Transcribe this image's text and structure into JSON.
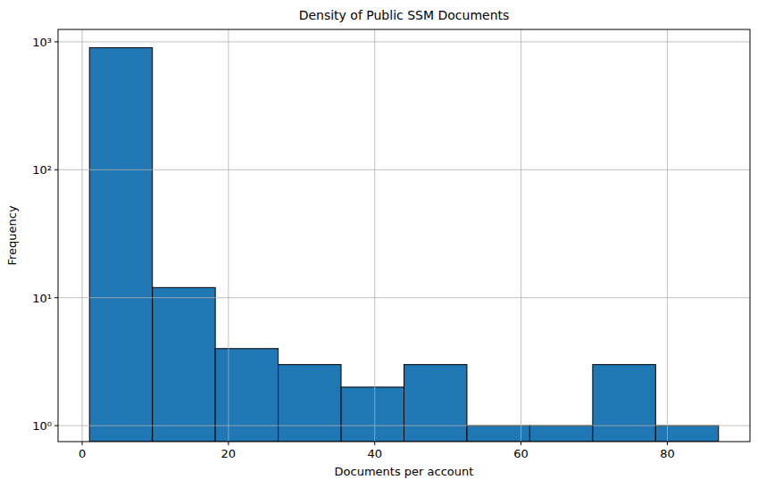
{
  "chart_data": {
    "type": "histogram",
    "title": "Density of Public SSM Documents",
    "x_label": "Documents per account",
    "y_label": "Frequency",
    "bins": [
      1,
      9.6,
      18.2,
      26.8,
      35.4,
      44,
      52.6,
      61.2,
      69.8,
      78.4,
      87
    ],
    "values": [
      900,
      12,
      4,
      3,
      2,
      3,
      1,
      1,
      3,
      1
    ],
    "color": "#1f77b4",
    "xlim": [
      -3.3,
      91.3
    ],
    "xticks": [
      0,
      20,
      40,
      60,
      80
    ],
    "ylim": [
      0.75,
      1250
    ],
    "yticks": [
      {
        "value": 1,
        "label": "10⁰"
      },
      {
        "value": 10,
        "label": "10¹"
      },
      {
        "value": 100,
        "label": "10²"
      },
      {
        "value": 1000,
        "label": "10³"
      }
    ],
    "log": "y",
    "grid": true
  }
}
